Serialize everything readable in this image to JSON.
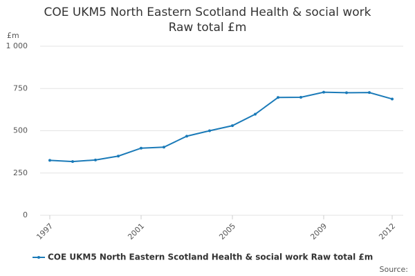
{
  "chart_data": {
    "type": "line",
    "title": [
      "COE UKM5 North Eastern Scotland Health & social work",
      "Raw total £m"
    ],
    "y_label": "£m",
    "source": "Source:",
    "x": [
      1997,
      1998,
      1999,
      2000,
      2001,
      2002,
      2003,
      2004,
      2005,
      2006,
      2007,
      2008,
      2009,
      2010,
      2011,
      2012
    ],
    "series": [
      {
        "name": "COE UKM5 North Eastern Scotland Health & social work Raw total £m",
        "color": "#1a7ab8",
        "values": [
          325,
          318,
          327,
          350,
          397,
          403,
          468,
          500,
          530,
          598,
          697,
          698,
          728,
          725,
          726,
          688
        ]
      }
    ],
    "xlim": [
      1997,
      2012
    ],
    "xticks": [
      1997,
      2001,
      2005,
      2009,
      2012
    ],
    "ylim": [
      0,
      1000
    ],
    "yticks": [
      0,
      250,
      500,
      750,
      {
        "value": 1000,
        "label": "1 000"
      }
    ],
    "grid": true
  }
}
